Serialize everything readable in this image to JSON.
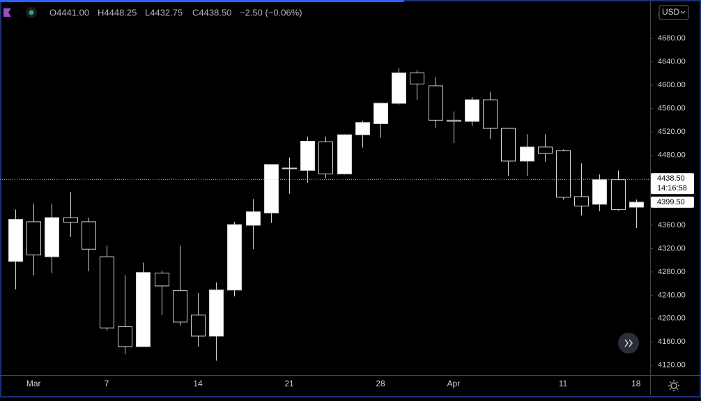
{
  "chart_data": {
    "type": "candlestick",
    "ohlc": [
      "O4441.00",
      "H4448.25",
      "L4432.75",
      "C4438.50"
    ],
    "change": "−2.50 (−0.06%)",
    "currency": "USD",
    "categories": [
      null,
      "Mar",
      null,
      null,
      null,
      "7",
      null,
      null,
      null,
      null,
      "14",
      null,
      null,
      null,
      null,
      "21",
      null,
      null,
      null,
      null,
      "28",
      null,
      null,
      null,
      "Apr",
      null,
      null,
      null,
      null,
      null,
      "11",
      null,
      null,
      null,
      "18"
    ],
    "open": [
      4298,
      4366,
      4306,
      4373,
      4366,
      4306,
      4186,
      4152,
      4278,
      4248,
      4206,
      4170,
      4249,
      4360,
      4381,
      4458,
      4454,
      4503,
      4448,
      4515,
      4534,
      4569,
      4621,
      4599,
      4540,
      4538,
      4575,
      4526,
      4470,
      4494,
      4488,
      4409,
      4396,
      4438,
      4391
    ],
    "high": [
      4387,
      4397,
      4397,
      4417,
      4373,
      4325,
      4274,
      4296,
      4282,
      4325,
      4244,
      4262,
      4366,
      4405,
      4464,
      4476,
      4512,
      4512,
      4516,
      4539,
      4570,
      4630,
      4626,
      4614,
      4555,
      4580,
      4588,
      4527,
      4516,
      4516,
      4490,
      4466,
      4447,
      4454,
      4404
    ],
    "low": [
      4250,
      4274,
      4278,
      4340,
      4281,
      4179,
      4139,
      4152,
      4206,
      4188,
      4152,
      4128,
      4238,
      4319,
      4364,
      4414,
      4433,
      4441,
      4447,
      4493,
      4510,
      4567,
      4575,
      4527,
      4501,
      4530,
      4508,
      4445,
      4445,
      4469,
      4404,
      4377,
      4384,
      4385,
      4355
    ],
    "close": [
      4370,
      4309,
      4373,
      4365,
      4319,
      4184,
      4152,
      4279,
      4256,
      4194,
      4170,
      4249,
      4361,
      4383,
      4464,
      4457,
      4504,
      4448,
      4515,
      4536,
      4569,
      4621,
      4602,
      4540,
      4538,
      4575,
      4526,
      4470,
      4494,
      4483,
      4408,
      4393,
      4438,
      4387,
      4399.5
    ],
    "up_color": "#ffffff",
    "down_color": "#000000",
    "ylim": [
      4103,
      4746
    ],
    "yticks": [
      {
        "value": 4120,
        "label": "4120.00"
      },
      {
        "value": 4160,
        "label": "4160.00"
      },
      {
        "value": 4200,
        "label": "4200.00"
      },
      {
        "value": 4240,
        "label": "4240.00"
      },
      {
        "value": 4280,
        "label": "4280.00"
      },
      {
        "value": 4320,
        "label": "4320.00"
      },
      {
        "value": 4360,
        "label": "4360.00"
      },
      {
        "value": 4400,
        "label": "4400.00"
      },
      {
        "value": 4440,
        "label": "4440.00"
      },
      {
        "value": 4480,
        "label": "4480.00"
      },
      {
        "value": 4520,
        "label": "4520.00"
      },
      {
        "value": 4560,
        "label": "4560.00"
      },
      {
        "value": 4600,
        "label": "4600.00"
      },
      {
        "value": 4640,
        "label": "4640.00"
      },
      {
        "value": 4680,
        "label": "4680.00"
      }
    ],
    "hidden_yticks": [
      4400,
      4440
    ],
    "price_line": {
      "value": 4438.5,
      "label": "4438.50"
    },
    "countdown": "14:16:58",
    "last_price": {
      "value": 4399.5,
      "label": "4399.50"
    }
  }
}
